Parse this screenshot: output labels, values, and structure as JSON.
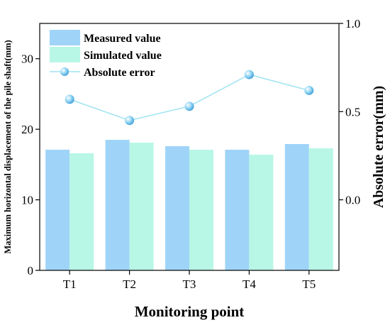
{
  "chart_data": {
    "type": "bar",
    "categories": [
      "T1",
      "T2",
      "T3",
      "T4",
      "T5"
    ],
    "xlabel": "Monitoring point",
    "ylabel_left": "Maximum horizontal displacement of the pile shaft(mm)",
    "ylabel_right": "Absolute error(mm)",
    "ylim_left": [
      0,
      35
    ],
    "yticks_left": [
      0,
      10,
      20,
      30
    ],
    "ylim_right": [
      -0.4,
      1.0
    ],
    "yticks_right": [
      0.0,
      0.5,
      1.0
    ],
    "yticklabels_right": [
      "0.0",
      "0.5",
      "1.0"
    ],
    "grid": false,
    "legend_position": "top-left",
    "series": [
      {
        "name": "Measured value",
        "kind": "bar",
        "axis": "left",
        "color": "#9fd4f8",
        "values": [
          17.1,
          18.5,
          17.6,
          17.1,
          17.9
        ]
      },
      {
        "name": "Simulated value",
        "kind": "bar",
        "axis": "left",
        "color": "#b8f6e6",
        "values": [
          16.6,
          18.1,
          17.1,
          16.4,
          17.3
        ]
      },
      {
        "name": "Absolute error",
        "kind": "line",
        "axis": "right",
        "color": "#9fe3f0",
        "values": [
          0.57,
          0.45,
          0.53,
          0.71,
          0.62
        ]
      }
    ]
  }
}
